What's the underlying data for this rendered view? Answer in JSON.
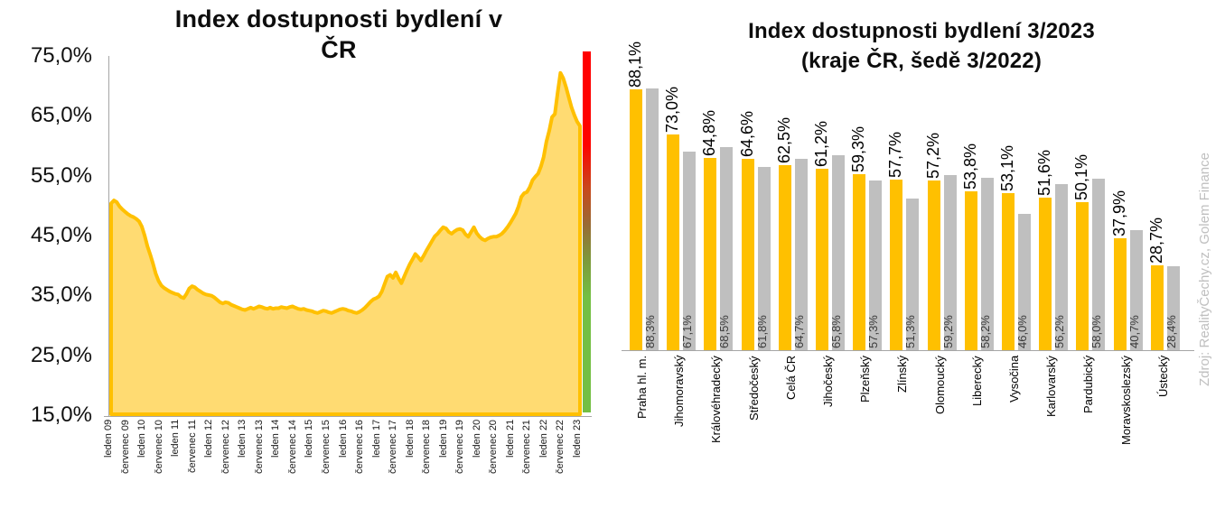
{
  "source_note": "Zdroj: RealityČechy.cz, Golem Finance",
  "chart_data": [
    {
      "type": "area",
      "title": "Index dostupnosti bydlení v ČR",
      "title_lines": [
        "Index dostupnosti bydlení  v",
        "ČR"
      ],
      "y_unit": "%",
      "ylim": [
        15,
        75
      ],
      "y_ticks": [
        "75,0%",
        "65,0%",
        "55,0%",
        "45,0%",
        "35,0%",
        "25,0%",
        "15,0%"
      ],
      "x_ticks": [
        "leden 09",
        "červenec 09",
        "leden 10",
        "červenec 10",
        "leden 11",
        "červenec 11",
        "leden 12",
        "červenec 12",
        "leden 13",
        "červenec 13",
        "leden 14",
        "červenec 14",
        "leden 15",
        "červenec 15",
        "leden 16",
        "červenec 16",
        "leden 17",
        "červenec 17",
        "leden 18",
        "červenec 18",
        "leden 19",
        "červenec 19",
        "leden 20",
        "červenec 20",
        "leden 21",
        "červenec 21",
        "leden 22",
        "červenec 22",
        "leden 23"
      ],
      "x_interval": "monthly, leden 2009 - leden 2023",
      "values_pct": [
        50.4,
        50.9,
        50.6,
        49.9,
        49.4,
        49.0,
        48.6,
        48.3,
        48.1,
        47.8,
        47.4,
        46.5,
        45.0,
        43.2,
        41.8,
        40.3,
        38.6,
        37.4,
        36.6,
        36.2,
        35.9,
        35.6,
        35.4,
        35.2,
        35.1,
        34.7,
        34.5,
        35.2,
        36.1,
        36.5,
        36.3,
        35.9,
        35.6,
        35.3,
        35.1,
        35.0,
        34.9,
        34.6,
        34.2,
        33.8,
        33.6,
        33.8,
        33.7,
        33.4,
        33.2,
        33.0,
        32.8,
        32.6,
        32.5,
        32.7,
        32.9,
        32.7,
        32.9,
        33.1,
        33.0,
        32.8,
        32.7,
        32.9,
        32.7,
        32.8,
        32.8,
        33.0,
        32.9,
        32.8,
        33.0,
        33.1,
        32.9,
        32.7,
        32.6,
        32.7,
        32.5,
        32.4,
        32.3,
        32.1,
        32.0,
        32.2,
        32.4,
        32.3,
        32.1,
        32.0,
        32.2,
        32.4,
        32.6,
        32.7,
        32.6,
        32.4,
        32.3,
        32.1,
        32.0,
        32.2,
        32.5,
        32.9,
        33.4,
        33.9,
        34.3,
        34.5,
        34.8,
        35.6,
        36.9,
        38.1,
        38.4,
        37.9,
        38.8,
        37.8,
        37.0,
        38.1,
        39.2,
        40.2,
        41.0,
        41.9,
        41.4,
        40.8,
        41.6,
        42.5,
        43.3,
        44.1,
        44.9,
        45.3,
        45.9,
        46.4,
        46.2,
        45.6,
        45.3,
        45.7,
        46.0,
        46.1,
        45.9,
        45.2,
        44.8,
        45.6,
        46.4,
        45.4,
        44.8,
        44.4,
        44.2,
        44.5,
        44.7,
        44.8,
        44.8,
        45.0,
        45.3,
        45.8,
        46.4,
        47.1,
        47.9,
        48.7,
        49.9,
        51.5,
        52.1,
        52.3,
        53.1,
        54.3,
        54.9,
        55.4,
        56.6,
        58.2,
        60.8,
        62.6,
        64.9,
        65.4,
        69.0,
        72.3,
        71.4,
        69.9,
        68.2,
        66.5,
        65.2,
        64.1,
        63.4
      ],
      "colors": {
        "line": "#FFC000",
        "fill": "#FFDB72"
      },
      "gradient_bar": {
        "top_color": "#FF0000",
        "bottom_color": "#74BF44"
      },
      "grid": false
    },
    {
      "type": "bar",
      "title": "Index dostupnosti bydlení 3/2023 (kraje ČR, šedě 3/2022)",
      "title_lines": [
        "Index dostupnosti bydlení 3/2023",
        "(kraje ČR, šedě 3/2022)"
      ],
      "categories": [
        "Praha hl. m.",
        "Jihomoravský",
        "Královéhradecký",
        "Středočeský",
        "Celá ČR",
        "Jihočeský",
        "Plzeňský",
        "Zlínský",
        "Olomoucký",
        "Liberecký",
        "Vysočina",
        "Karlovarský",
        "Pardubický",
        "Moravskoslezský",
        "Ústecký"
      ],
      "series": [
        {
          "name": "3/2023",
          "color": "#FFC000",
          "values": [
            88.1,
            73.0,
            64.8,
            64.6,
            62.5,
            61.2,
            59.3,
            57.7,
            57.2,
            53.8,
            53.1,
            51.6,
            50.1,
            37.9,
            28.7
          ]
        },
        {
          "name": "3/2022",
          "color": "#BFBFBF",
          "values": [
            88.3,
            67.1,
            68.5,
            61.8,
            64.7,
            65.8,
            57.3,
            51.3,
            59.2,
            58.2,
            46.0,
            56.2,
            58.0,
            40.7,
            28.4
          ]
        }
      ],
      "ylim": [
        0,
        95
      ],
      "value_label_format": "decimal comma + %",
      "grid": false,
      "legend": "none (values labelled on bars)"
    }
  ]
}
